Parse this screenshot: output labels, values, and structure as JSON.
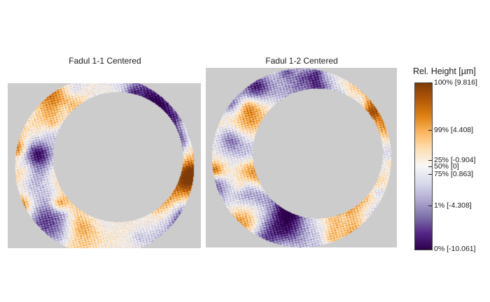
{
  "chart_data": {
    "type": "heatmap",
    "panels": [
      {
        "title": "Fadul 1-1 Centered",
        "outer_radius_px": 128,
        "inner_radius_px": 93,
        "bore_offset": [
          0.15,
          -0.1
        ]
      },
      {
        "title": "Fadul 1-2 Centered",
        "outer_radius_px": 128,
        "inner_radius_px": 93,
        "bore_offset": [
          0.18,
          -0.05
        ]
      }
    ],
    "legend": {
      "title": "Rel. Height [µm]",
      "palette": [
        "#2d004b",
        "#542788",
        "#8073ac",
        "#b2abd2",
        "#d8daeb",
        "#f7f7f7",
        "#fee0b6",
        "#fdb863",
        "#e08214",
        "#b35806",
        "#7f3b08"
      ],
      "ticks": [
        {
          "label": "100% [9.816]",
          "value": 9.816
        },
        {
          "label": "99% [4.408]",
          "value": 4.408
        },
        {
          "label": "75% [0.863]",
          "value": 0.863
        },
        {
          "label": "50% [0]",
          "value": 0
        },
        {
          "label": "25% [-0.904]",
          "value": -0.904
        },
        {
          "label": "1% [-4.308]",
          "value": -4.308
        },
        {
          "label": "0% [-10.061]",
          "value": -10.061
        }
      ],
      "range": [
        -10.061,
        9.816
      ]
    },
    "background_color": "#cccccc"
  }
}
